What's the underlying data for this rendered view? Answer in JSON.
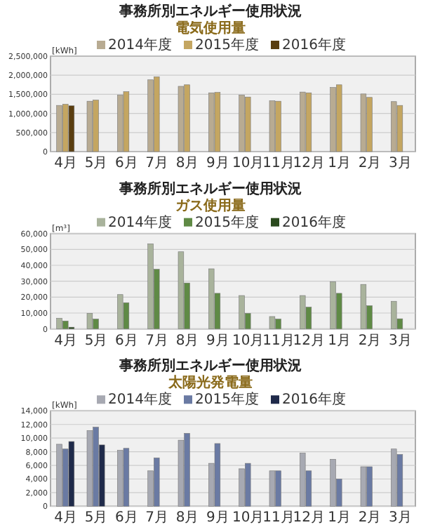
{
  "chart_data": [
    {
      "type": "bar",
      "title": "事務所別エネルギー使用状況",
      "subtitle": "電気使用量",
      "ylabel": "[kWh]",
      "categories": [
        "4月",
        "5月",
        "6月",
        "7月",
        "8月",
        "9月",
        "10月",
        "11月",
        "12月",
        "1月",
        "2月",
        "3月"
      ],
      "series": [
        {
          "name": "2014年度",
          "color": "#b8ab92",
          "values": [
            1210000,
            1320000,
            1480000,
            1880000,
            1710000,
            1540000,
            1480000,
            1330000,
            1560000,
            1680000,
            1510000,
            1310000
          ]
        },
        {
          "name": "2015年度",
          "color": "#c4a661",
          "values": [
            1240000,
            1350000,
            1570000,
            1960000,
            1750000,
            1550000,
            1430000,
            1320000,
            1540000,
            1750000,
            1420000,
            1210000
          ]
        },
        {
          "name": "2016年度",
          "color": "#5a3e10",
          "values": [
            1200000,
            null,
            null,
            null,
            null,
            null,
            null,
            null,
            null,
            null,
            null,
            null
          ]
        }
      ],
      "ylim": [
        0,
        2500000
      ],
      "yticks": [
        {
          "value": 0,
          "label": "0"
        },
        {
          "value": 500000,
          "label": "500,000"
        },
        {
          "value": 1000000,
          "label": "1,000,000"
        },
        {
          "value": 1500000,
          "label": "1,500,000"
        },
        {
          "value": 2000000,
          "label": "2,000,000"
        },
        {
          "value": 2500000,
          "label": "2,500,000"
        }
      ],
      "grid": "y",
      "legend": "top"
    },
    {
      "type": "bar",
      "title": "事務所別エネルギー使用状況",
      "subtitle": "ガス使用量",
      "ylabel": "[m³]",
      "categories": [
        "4月",
        "5月",
        "6月",
        "7月",
        "8月",
        "9月",
        "10月",
        "11月",
        "12月",
        "1月",
        "2月",
        "3月"
      ],
      "series": [
        {
          "name": "2014年度",
          "color": "#a9b39c",
          "values": [
            6700,
            9800,
            21600,
            53500,
            48500,
            37800,
            21000,
            7800,
            21000,
            29700,
            28000,
            17400
          ]
        },
        {
          "name": "2015年度",
          "color": "#5f8a45",
          "values": [
            5000,
            6200,
            16500,
            37500,
            28900,
            22400,
            9800,
            6200,
            13700,
            22400,
            14600,
            6400
          ]
        },
        {
          "name": "2016年度",
          "color": "#2b4a1e",
          "values": [
            1100,
            null,
            null,
            null,
            null,
            null,
            null,
            null,
            null,
            null,
            null,
            null
          ]
        }
      ],
      "ylim": [
        0,
        60000
      ],
      "yticks": [
        {
          "value": 0,
          "label": "0"
        },
        {
          "value": 10000,
          "label": "10,000"
        },
        {
          "value": 20000,
          "label": "20,000"
        },
        {
          "value": 30000,
          "label": "30,000"
        },
        {
          "value": 40000,
          "label": "40,000"
        },
        {
          "value": 50000,
          "label": "50,000"
        },
        {
          "value": 60000,
          "label": "60,000"
        }
      ],
      "grid": "y",
      "legend": "top"
    },
    {
      "type": "bar",
      "title": "事務所別エネルギー使用状況",
      "subtitle": "太陽光発電量",
      "ylabel": "[kWh]",
      "categories": [
        "4月",
        "5月",
        "6月",
        "7月",
        "8月",
        "9月",
        "10月",
        "11月",
        "12月",
        "1月",
        "2月",
        "3月"
      ],
      "series": [
        {
          "name": "2014年度",
          "color": "#a7a9b2",
          "values": [
            9100,
            11100,
            8200,
            5200,
            9700,
            6300,
            5500,
            5200,
            7800,
            6900,
            5800,
            8400
          ]
        },
        {
          "name": "2015年度",
          "color": "#6a7aa3",
          "values": [
            8400,
            11600,
            8500,
            7100,
            10700,
            9200,
            6300,
            5200,
            5200,
            4000,
            5800,
            7600
          ]
        },
        {
          "name": "2016年度",
          "color": "#1f2a4a",
          "values": [
            9500,
            9000,
            null,
            null,
            null,
            null,
            null,
            null,
            null,
            null,
            null,
            null
          ]
        }
      ],
      "ylim": [
        0,
        14000
      ],
      "yticks": [
        {
          "value": 0,
          "label": "0"
        },
        {
          "value": 2000,
          "label": "2,000"
        },
        {
          "value": 4000,
          "label": "4,000"
        },
        {
          "value": 6000,
          "label": "6,000"
        },
        {
          "value": 8000,
          "label": "8,000"
        },
        {
          "value": 10000,
          "label": "10,000"
        },
        {
          "value": 12000,
          "label": "12,000"
        },
        {
          "value": 14000,
          "label": "14,000"
        }
      ],
      "grid": "y",
      "legend": "top"
    }
  ]
}
